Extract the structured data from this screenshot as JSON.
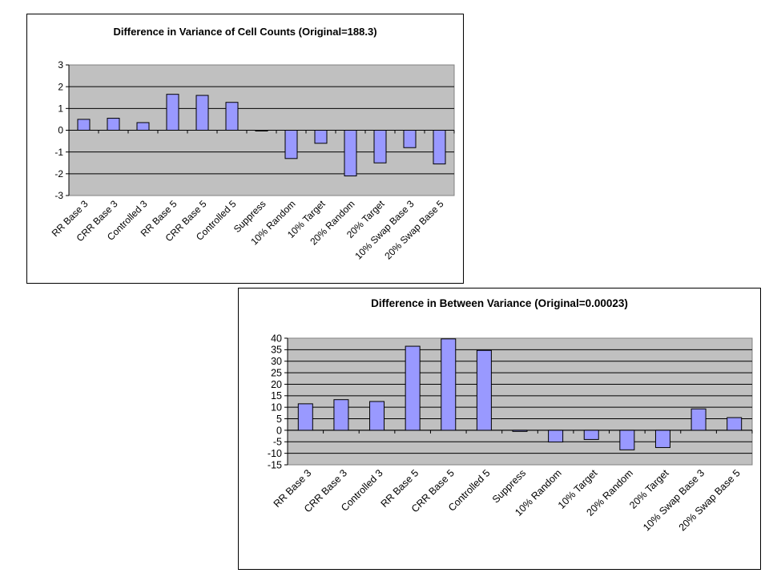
{
  "colors": {
    "bar_fill": "#9999ff",
    "bar_stroke": "#000000",
    "plot_area": "#c0c0c0",
    "gridline": "#000000"
  },
  "chart_data": [
    {
      "type": "bar",
      "title": "Difference in Variance of Cell Counts (Original=188.3)",
      "xlabel": "",
      "ylabel": "",
      "ylim": [
        -3,
        3
      ],
      "ytick_step": 1,
      "grid": true,
      "legend": "none",
      "categories": [
        "RR Base 3",
        "CRR Base 3",
        "Controlled  3",
        "RR Base 5",
        "CRR Base 5",
        "Controlled 5",
        "Suppress",
        "10% Random",
        "10% Target",
        "20% Random",
        "20% Target",
        "10% Swap Base 3",
        "20% Swap Base 5"
      ],
      "values": [
        0.5,
        0.55,
        0.35,
        1.65,
        1.6,
        1.28,
        -0.03,
        -1.3,
        -0.6,
        -2.1,
        -1.5,
        -0.8,
        -1.55
      ]
    },
    {
      "type": "bar",
      "title": "Difference in Between Variance (Original=0.00023)",
      "xlabel": "",
      "ylabel": "",
      "ylim": [
        -15,
        40
      ],
      "ytick_step": 5,
      "grid": true,
      "legend": "none",
      "categories": [
        "RR Base 3",
        "CRR Base 3",
        "Controlled  3",
        "RR Base 5",
        "CRR Base 5",
        "Controlled 5",
        "Suppress",
        "10% Random",
        "10% Target",
        "20% Random",
        "20% Target",
        "10% Swap Base 3",
        "20% Swap Base 5"
      ],
      "values": [
        11.5,
        13.3,
        12.5,
        36.5,
        39.7,
        34.7,
        -0.5,
        -5.1,
        -4,
        -8.5,
        -7.5,
        9.3,
        5.5
      ]
    }
  ]
}
